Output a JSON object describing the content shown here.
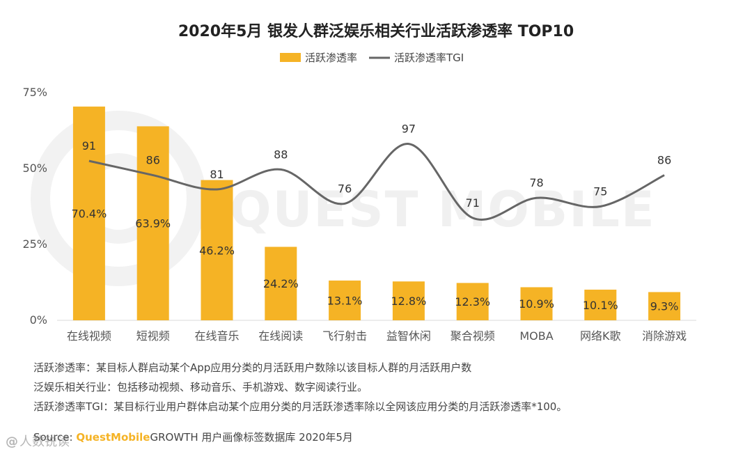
{
  "chart_data": {
    "type": "bar",
    "title": "2020年5月 银发人群泛娱乐相关行业活跃渗透率 TOP10",
    "categories": [
      "在线视频",
      "短视频",
      "在线音乐",
      "在线阅读",
      "飞行射击",
      "益智休闲",
      "聚合视频",
      "MOBA",
      "网络K歌",
      "消除游戏"
    ],
    "series": [
      {
        "name": "活跃渗透率",
        "type": "bar",
        "values": [
          70.4,
          63.9,
          46.2,
          24.2,
          13.1,
          12.8,
          12.3,
          10.9,
          10.1,
          9.3
        ],
        "labels": [
          "70.4%",
          "63.9%",
          "46.2%",
          "24.2%",
          "13.1%",
          "12.8%",
          "12.3%",
          "10.9%",
          "10.1%",
          "9.3%"
        ],
        "color": "#f5b325"
      },
      {
        "name": "活跃渗透率TGI",
        "type": "line",
        "values": [
          91,
          86,
          81,
          88,
          76,
          97,
          71,
          78,
          75,
          86
        ],
        "color": "#666666"
      }
    ],
    "y_ticks": [
      "75%",
      "50%",
      "25%",
      "0%"
    ],
    "ylim": [
      0,
      75
    ],
    "y2lim": [
      35,
      115
    ],
    "legend": "top-center",
    "grid": false
  },
  "watermark": "QUEST MOBILE",
  "notes": [
    "活跃渗透率：某目标人群启动某个App应用分类的月活跃用户数除以该目标人群的月活跃用户数",
    "泛娱乐相关行业：包括移动视频、移动音乐、手机游戏、数字阅读行业。",
    "活跃渗透率TGI：某目标行业用户群体启动某个应用分类的月活跃渗透率除以全网该应用分类的月活跃渗透率*100。"
  ],
  "source": {
    "prefix": "Source: ",
    "brand": "QuestMobile",
    "suffix": "GROWTH 用户画像标签数据库 2020年5月"
  },
  "overlay_mark": {
    "glyph": "@",
    "text": "人数锐读"
  }
}
